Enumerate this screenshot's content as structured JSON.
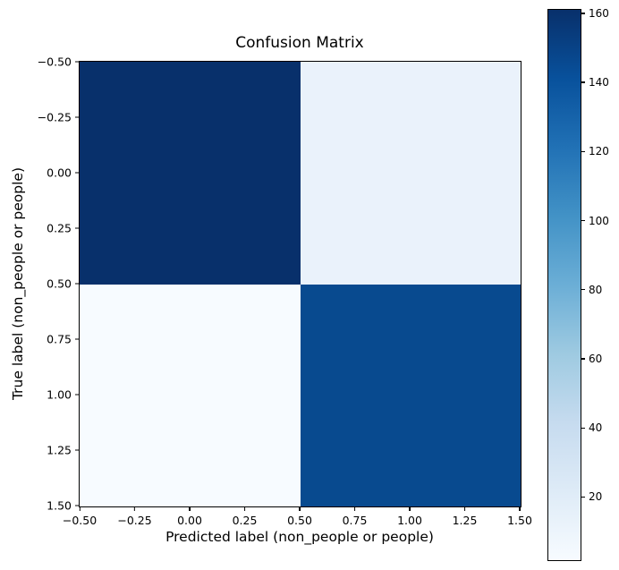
{
  "figure": {
    "title": "Confusion Matrix",
    "xlabel": "Predicted label (non_people or people)",
    "ylabel": "True label (non_people or people)",
    "background": "#ffffff",
    "text_color": "#000000"
  },
  "axes": {
    "x_tick_labels": [
      "−0.50",
      "−0.25",
      "0.00",
      "0.25",
      "0.50",
      "0.75",
      "1.00",
      "1.25",
      "1.50"
    ],
    "y_tick_labels": [
      "−0.50",
      "−0.25",
      "0.00",
      "0.25",
      "0.50",
      "0.75",
      "1.00",
      "1.25",
      "1.50"
    ]
  },
  "heatmap": {
    "cell_colors": [
      [
        "#08306b",
        "#eaf2fb"
      ],
      [
        "#f7fbff",
        "#084a8f"
      ]
    ]
  },
  "colorbar": {
    "tick_values": [
      20,
      40,
      60,
      80,
      100,
      120,
      140,
      160
    ],
    "vmin": 2,
    "vmax": 161,
    "gradient": [
      {
        "stop": 0.0,
        "color": "#f7fbff"
      },
      {
        "stop": 0.125,
        "color": "#deebf7"
      },
      {
        "stop": 0.25,
        "color": "#c6dbef"
      },
      {
        "stop": 0.375,
        "color": "#9ecae1"
      },
      {
        "stop": 0.5,
        "color": "#6baed6"
      },
      {
        "stop": 0.625,
        "color": "#4292c6"
      },
      {
        "stop": 0.75,
        "color": "#2171b5"
      },
      {
        "stop": 0.875,
        "color": "#08519c"
      },
      {
        "stop": 1.0,
        "color": "#08306b"
      }
    ]
  },
  "chart_data": {
    "type": "heatmap",
    "title": "Confusion Matrix",
    "xlabel": "Predicted label (non_people or people)",
    "ylabel": "True label (non_people or people)",
    "classes": [
      "non_people",
      "people"
    ],
    "matrix_rows_true_by_cols_predicted": [
      [
        161,
        15
      ],
      [
        2,
        147
      ]
    ],
    "values_estimated_from_color": true,
    "colormap": "Blues",
    "color_range": [
      2,
      161
    ],
    "x_range": [
      -0.5,
      1.5
    ],
    "y_range": [
      -0.5,
      1.5
    ],
    "x_ticks": [
      -0.5,
      -0.25,
      0.0,
      0.25,
      0.5,
      0.75,
      1.0,
      1.25,
      1.5
    ],
    "y_ticks": [
      -0.5,
      -0.25,
      0.0,
      0.25,
      0.5,
      0.75,
      1.0,
      1.25,
      1.5
    ],
    "colorbar_ticks": [
      20,
      40,
      60,
      80,
      100,
      120,
      140,
      160
    ],
    "grid": false,
    "legend_position": "colorbar-right",
    "cell_annotations": false
  }
}
